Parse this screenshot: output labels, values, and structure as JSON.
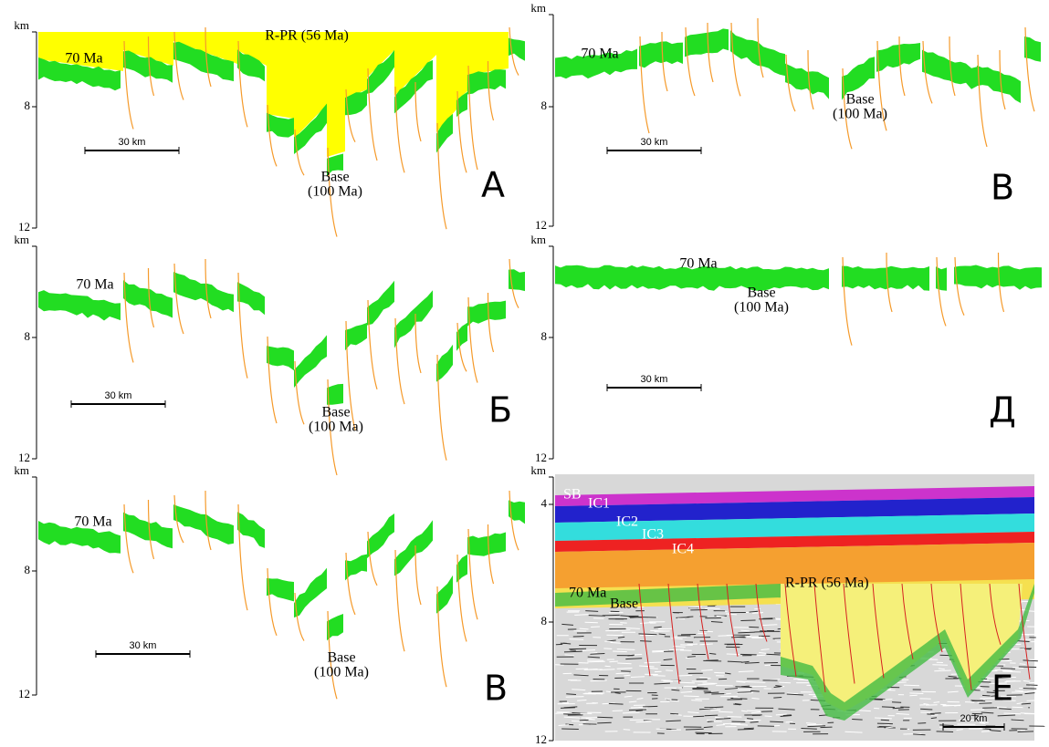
{
  "panels": [
    {
      "label": "А",
      "unit": "km",
      "ticks": [
        8,
        12
      ],
      "top_horizon": "R-PR (56 Ma)",
      "horizon": "70 Ma",
      "base": "Base",
      "base_age": "(100 Ma)",
      "scale_bar": "30 km"
    },
    {
      "label": "В",
      "unit": "km",
      "ticks": [
        8,
        12
      ],
      "horizon": "70 Ma",
      "base": "Base",
      "base_age": "(100 Ma)",
      "scale_bar": "30 km"
    },
    {
      "label": "Б",
      "unit": "km",
      "ticks": [
        8,
        12
      ],
      "horizon": "70 Ma",
      "base": "Base",
      "base_age": "(100 Ma)",
      "scale_bar": "30 km"
    },
    {
      "label": "Д",
      "unit": "km",
      "ticks": [
        8,
        12
      ],
      "horizon": "70 Ma",
      "base": "Base",
      "base_age": "(100 Ma)",
      "scale_bar": "30 km"
    },
    {
      "label": "В",
      "unit": "km",
      "ticks": [
        8,
        12
      ],
      "horizon": "70 Ma",
      "base": "Base",
      "base_age": "(100 Ma)",
      "scale_bar": "30 km"
    },
    {
      "label": "Е",
      "unit": "km",
      "ticks": [
        4,
        8,
        12
      ],
      "layers": [
        "SB",
        "IC1",
        "IC2",
        "IC3",
        "IC4"
      ],
      "top_horizon": "R-PR (56 Ma)",
      "horizon": "70 Ma",
      "base": "Base",
      "scale_bar": "20 km"
    }
  ]
}
